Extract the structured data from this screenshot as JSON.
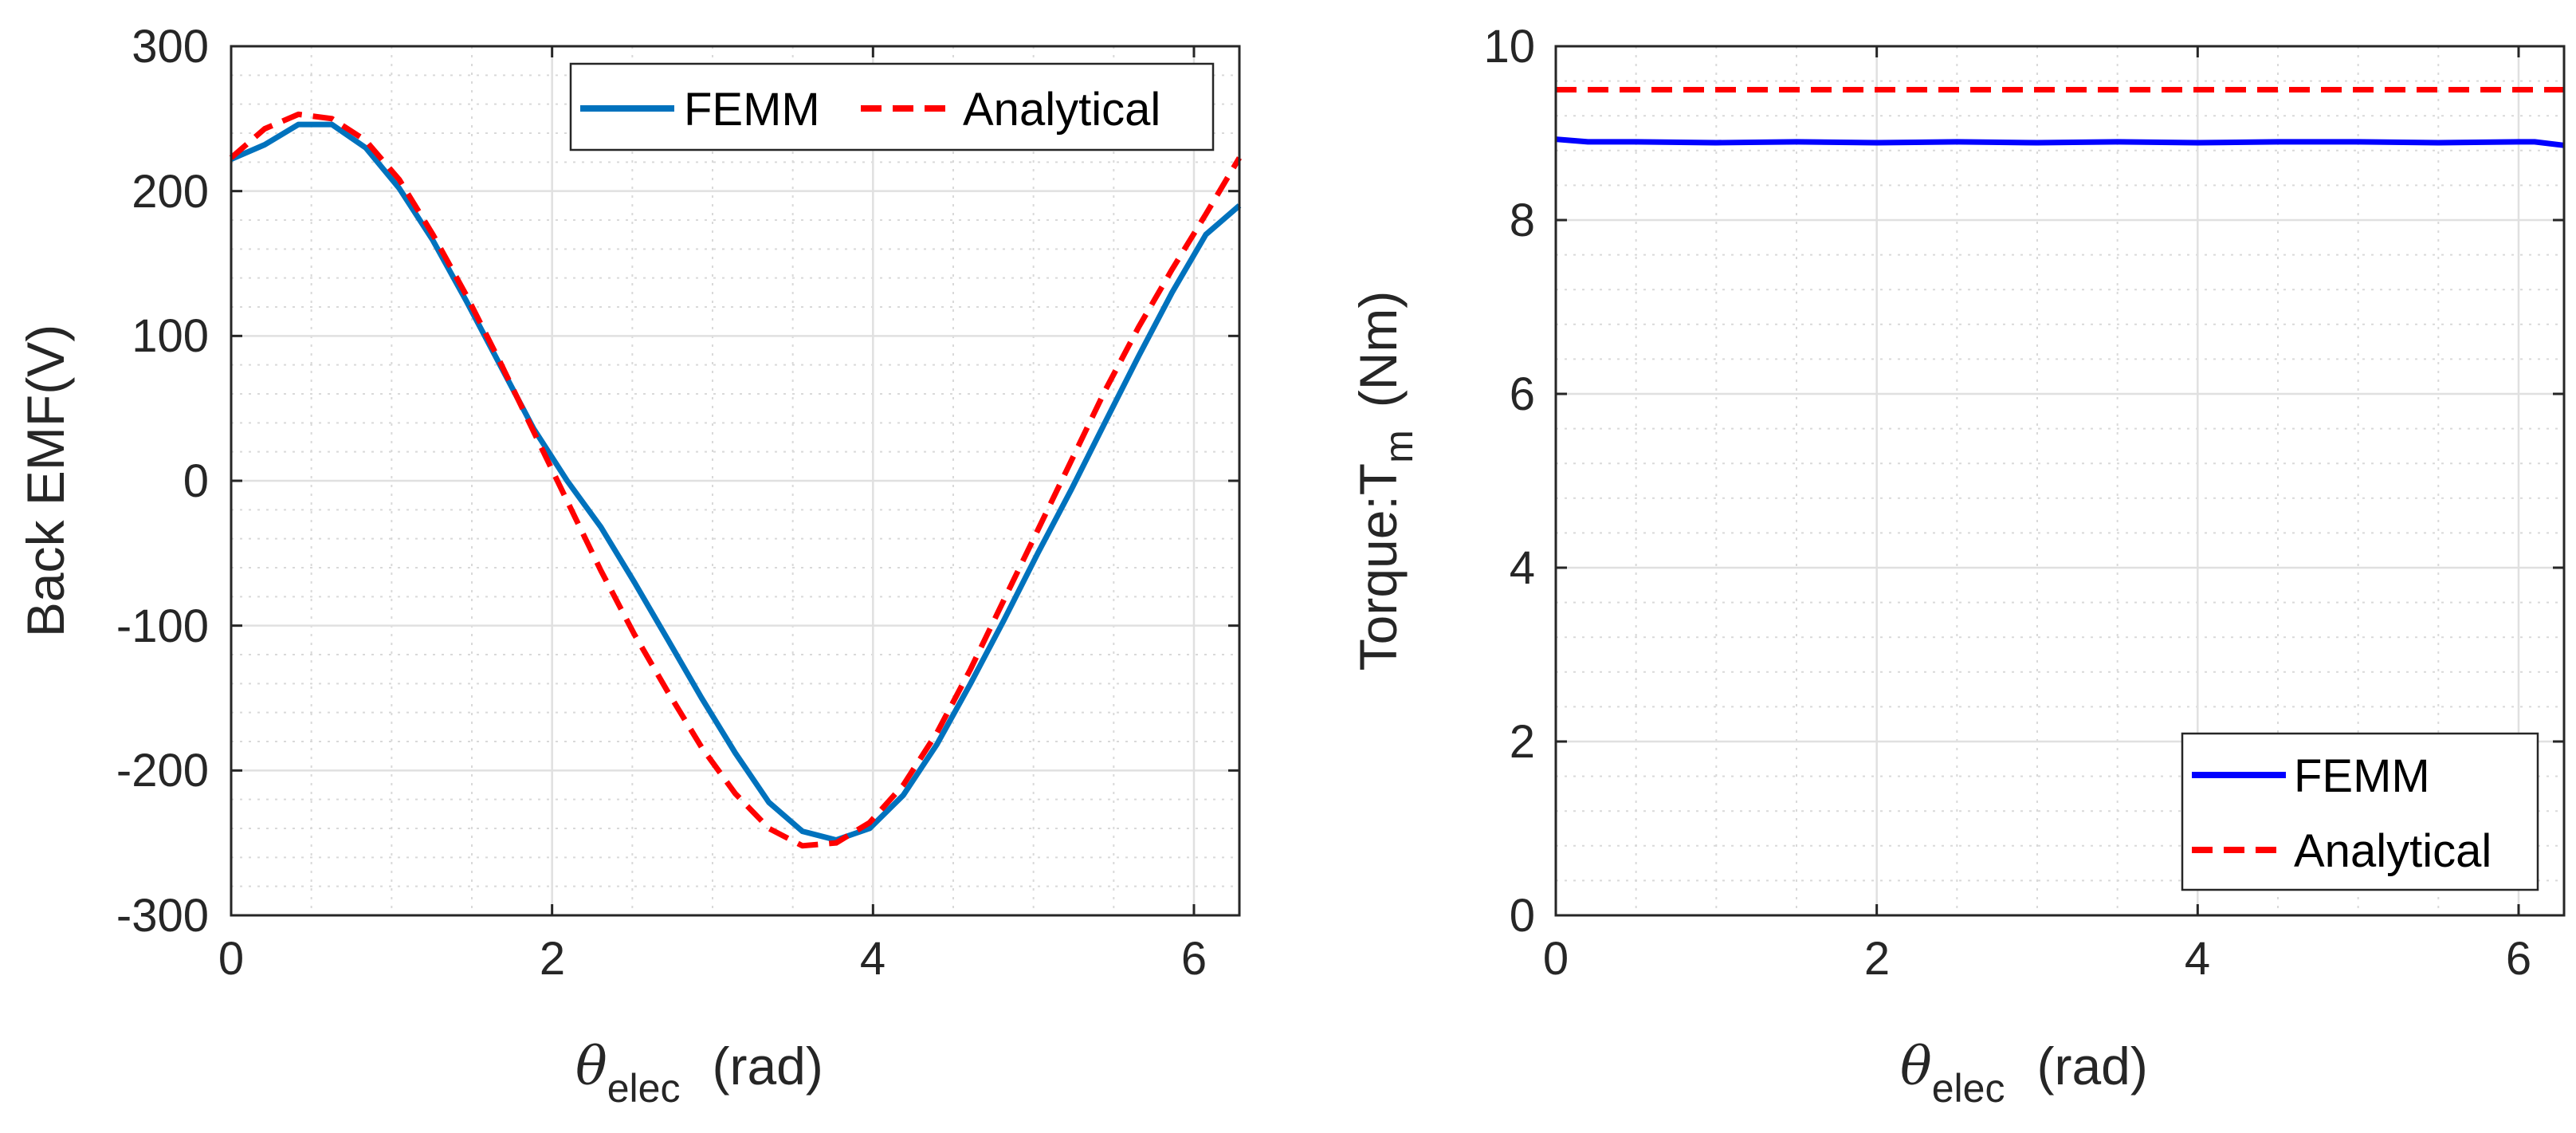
{
  "chart_data": [
    {
      "type": "line",
      "xlabel": {
        "symbol": "θ",
        "sub": "elec",
        "unit": "(rad)"
      },
      "ylabel": "Back EMF(V)",
      "xlim": [
        0,
        6.2832
      ],
      "ylim": [
        -300,
        300
      ],
      "xticks": [
        0,
        2,
        4,
        6
      ],
      "yticks": [
        -300,
        -200,
        -100,
        0,
        100,
        200,
        300
      ],
      "xtick_labels": [
        "0",
        "2",
        "4",
        "6"
      ],
      "ytick_labels": [
        "-300",
        "-200",
        "-100",
        "0",
        "100",
        "200",
        "300"
      ],
      "grid": true,
      "legend": "top-right",
      "legend_layout": "horizontal",
      "series": [
        {
          "name": "FEMM",
          "color": "#0072BD",
          "dash": "solid",
          "x": [
            0,
            0.209,
            0.419,
            0.628,
            0.838,
            1.047,
            1.257,
            1.466,
            1.676,
            1.885,
            2.094,
            2.304,
            2.513,
            2.723,
            2.932,
            3.142,
            3.351,
            3.56,
            3.77,
            3.979,
            4.189,
            4.398,
            4.608,
            4.817,
            5.027,
            5.236,
            5.445,
            5.655,
            5.864,
            6.074,
            6.283
          ],
          "y": [
            222,
            232,
            246,
            246,
            230,
            202,
            166,
            124,
            80,
            36,
            0,
            -32,
            -70,
            -110,
            -150,
            -188,
            -222,
            -242,
            -248,
            -240,
            -217,
            -182,
            -140,
            -96,
            -50,
            -6,
            40,
            86,
            130,
            170,
            190
          ]
        },
        {
          "name": "Analytical",
          "color": "#FF0000",
          "dash": "dashed",
          "x": [
            0,
            0.209,
            0.419,
            0.628,
            0.838,
            1.047,
            1.257,
            1.466,
            1.676,
            1.885,
            2.094,
            2.304,
            2.513,
            2.723,
            2.932,
            3.142,
            3.351,
            3.56,
            3.77,
            3.979,
            4.189,
            4.398,
            4.608,
            4.817,
            5.027,
            5.236,
            5.445,
            5.655,
            5.864,
            6.074,
            6.283
          ],
          "y": [
            223,
            243,
            253,
            250,
            235,
            208,
            170,
            128,
            82,
            34,
            -14,
            -62,
            -106,
            -146,
            -184,
            -216,
            -240,
            -252,
            -250,
            -236,
            -210,
            -174,
            -130,
            -82,
            -34,
            14,
            62,
            106,
            146,
            184,
            223
          ]
        }
      ]
    },
    {
      "type": "line",
      "xlabel": {
        "symbol": "θ",
        "sub": "elec",
        "unit": "(rad)"
      },
      "ylabel": {
        "text": "Torque:T",
        "sub": "m",
        "unit": "(Nm)"
      },
      "xlim": [
        0,
        6.2832
      ],
      "ylim": [
        0,
        10
      ],
      "xticks": [
        0,
        2,
        4,
        6
      ],
      "yticks": [
        0,
        2,
        4,
        6,
        8,
        10
      ],
      "xtick_labels": [
        "0",
        "2",
        "4",
        "6"
      ],
      "ytick_labels": [
        "0",
        "2",
        "4",
        "6",
        "8",
        "10"
      ],
      "grid": true,
      "legend": "bottom-right",
      "legend_layout": "vertical",
      "series": [
        {
          "name": "FEMM",
          "color": "#0000FF",
          "dash": "solid",
          "x": [
            0,
            0.2,
            0.5,
            1.0,
            1.5,
            2.0,
            2.5,
            3.0,
            3.5,
            4.0,
            4.5,
            5.0,
            5.5,
            6.0,
            6.1,
            6.283
          ],
          "y": [
            8.93,
            8.9,
            8.9,
            8.89,
            8.9,
            8.89,
            8.9,
            8.89,
            8.9,
            8.89,
            8.9,
            8.9,
            8.89,
            8.9,
            8.9,
            8.86
          ]
        },
        {
          "name": "Analytical",
          "color": "#FF0000",
          "dash": "dashed",
          "x": [
            0,
            6.283
          ],
          "y": [
            9.5,
            9.5
          ]
        }
      ]
    }
  ]
}
